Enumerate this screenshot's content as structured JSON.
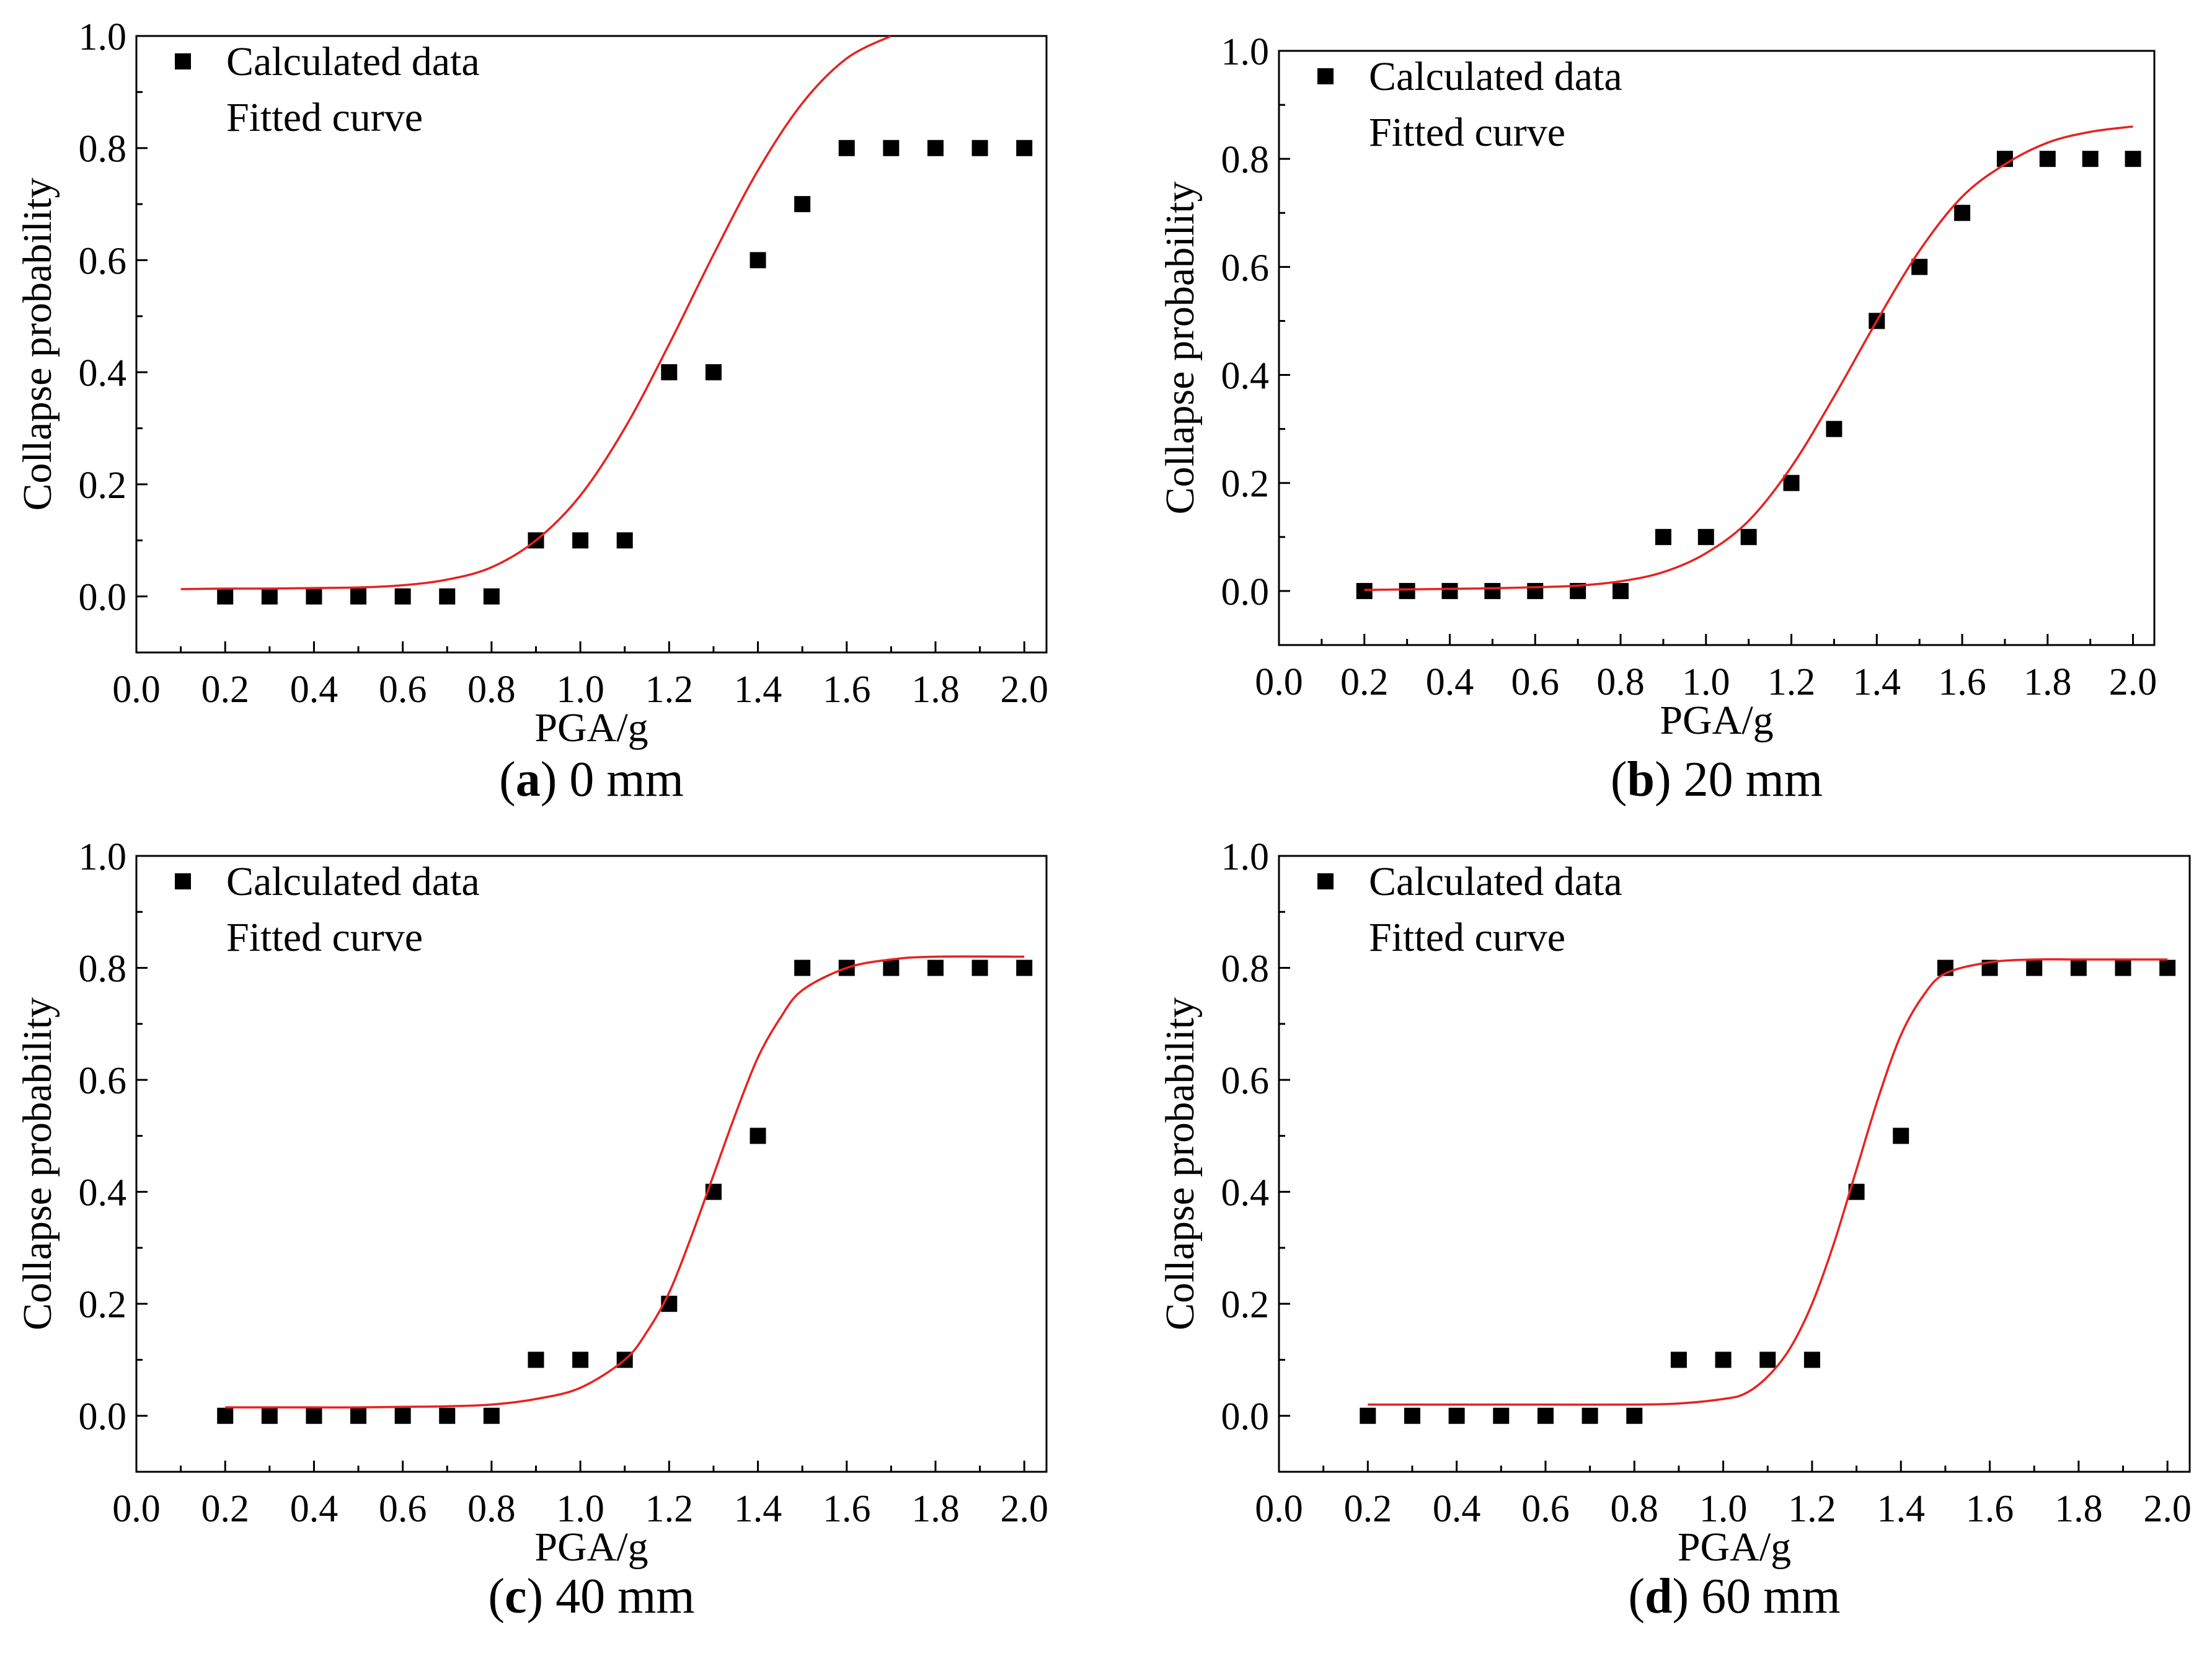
{
  "figure": {
    "x_tick_labels": [
      "0.0",
      "0.2",
      "0.4",
      "0.6",
      "0.8",
      "1.0",
      "1.2",
      "1.4",
      "1.6",
      "1.8",
      "2.0"
    ],
    "y_tick_labels": [
      "0.0",
      "0.2",
      "0.4",
      "0.6",
      "0.8",
      "1.0"
    ]
  },
  "chart_data": [
    {
      "type": "scatter",
      "panel": "a",
      "caption_letter": "a",
      "caption_text": " 0 mm",
      "xlabel": "PGA/g",
      "ylabel": "Collapse probability",
      "xlim": [
        0.0,
        2.05
      ],
      "ylim": [
        -0.1,
        1.0
      ],
      "legend": [
        "Calculated data",
        "Fitted curve"
      ],
      "legend_placement": "top-left",
      "series": [
        {
          "name": "Calculated data",
          "kind": "points",
          "color": "#000000",
          "x": [
            0.2,
            0.3,
            0.4,
            0.5,
            0.6,
            0.7,
            0.8,
            0.9,
            1.0,
            1.1,
            1.2,
            1.3,
            1.4,
            1.5,
            1.6,
            1.7,
            1.8,
            1.9,
            2.0
          ],
          "y": [
            0,
            0,
            0,
            0,
            0,
            0,
            0,
            0.1,
            0.1,
            0.1,
            0.4,
            0.4,
            0.6,
            0.7,
            0.8,
            0.8,
            0.8,
            0.8,
            0.8
          ]
        },
        {
          "name": "Fitted curve",
          "kind": "line",
          "color": "#e8211f",
          "x": [
            0.1,
            0.2,
            0.3,
            0.4,
            0.5,
            0.6,
            0.7,
            0.8,
            0.9,
            1.0,
            1.1,
            1.2,
            1.3,
            1.4,
            1.5,
            1.6,
            1.7
          ],
          "y": [
            0.013,
            0.014,
            0.014,
            0.015,
            0.016,
            0.02,
            0.03,
            0.052,
            0.1,
            0.18,
            0.3,
            0.45,
            0.61,
            0.76,
            0.88,
            0.96,
            1.0
          ]
        }
      ]
    },
    {
      "type": "scatter",
      "panel": "b",
      "caption_letter": "b",
      "caption_text": " 20 mm",
      "xlabel": "PGA/g",
      "ylabel": "Collapse probability",
      "xlim": [
        0.0,
        2.05
      ],
      "ylim": [
        -0.1,
        1.0
      ],
      "legend": [
        "Calculated data",
        "Fitted curve"
      ],
      "legend_placement": "top-left",
      "series": [
        {
          "name": "Calculated data",
          "kind": "points",
          "color": "#000000",
          "x": [
            0.2,
            0.3,
            0.4,
            0.5,
            0.6,
            0.7,
            0.8,
            0.9,
            1.0,
            1.1,
            1.2,
            1.3,
            1.4,
            1.5,
            1.6,
            1.7,
            1.8,
            1.9,
            2.0
          ],
          "y": [
            0,
            0,
            0,
            0,
            0,
            0,
            0,
            0.1,
            0.1,
            0.1,
            0.2,
            0.3,
            0.5,
            0.6,
            0.7,
            0.8,
            0.8,
            0.8,
            0.8
          ]
        },
        {
          "name": "Fitted curve",
          "kind": "line",
          "color": "#e8211f",
          "x": [
            0.2,
            0.3,
            0.4,
            0.5,
            0.6,
            0.7,
            0.8,
            0.9,
            1.0,
            1.1,
            1.2,
            1.3,
            1.4,
            1.5,
            1.6,
            1.7,
            1.8,
            1.9,
            2.0
          ],
          "y": [
            0.002,
            0.003,
            0.004,
            0.005,
            0.007,
            0.01,
            0.018,
            0.035,
            0.07,
            0.13,
            0.23,
            0.36,
            0.5,
            0.63,
            0.73,
            0.79,
            0.83,
            0.85,
            0.86
          ]
        }
      ]
    },
    {
      "type": "scatter",
      "panel": "c",
      "caption_letter": "c",
      "caption_text": " 40 mm",
      "xlabel": "PGA/g",
      "ylabel": "Collapse probability",
      "xlim": [
        0.0,
        2.05
      ],
      "ylim": [
        -0.1,
        1.0
      ],
      "legend": [
        "Calculated data",
        "Fitted curve"
      ],
      "legend_placement": "top-left",
      "series": [
        {
          "name": "Calculated data",
          "kind": "points",
          "color": "#000000",
          "x": [
            0.2,
            0.3,
            0.4,
            0.5,
            0.6,
            0.7,
            0.8,
            0.9,
            1.0,
            1.1,
            1.2,
            1.3,
            1.4,
            1.5,
            1.6,
            1.7,
            1.8,
            1.9,
            2.0
          ],
          "y": [
            0,
            0,
            0,
            0,
            0,
            0,
            0,
            0.1,
            0.1,
            0.1,
            0.2,
            0.4,
            0.5,
            0.8,
            0.8,
            0.8,
            0.8,
            0.8,
            0.8
          ]
        },
        {
          "name": "Fitted curve",
          "kind": "line",
          "color": "#e8211f",
          "x": [
            0.2,
            0.3,
            0.4,
            0.5,
            0.6,
            0.7,
            0.8,
            0.9,
            1.0,
            1.1,
            1.15,
            1.2,
            1.25,
            1.3,
            1.35,
            1.4,
            1.45,
            1.5,
            1.6,
            1.7,
            1.8,
            2.0
          ],
          "y": [
            0.015,
            0.015,
            0.015,
            0.015,
            0.016,
            0.017,
            0.02,
            0.03,
            0.05,
            0.1,
            0.15,
            0.22,
            0.32,
            0.43,
            0.54,
            0.64,
            0.71,
            0.76,
            0.8,
            0.815,
            0.82,
            0.82
          ]
        }
      ]
    },
    {
      "type": "scatter",
      "panel": "d",
      "caption_letter": "d",
      "caption_text": " 60 mm",
      "xlabel": "PGA/g",
      "ylabel": "Collapse probability",
      "xlim": [
        0.0,
        2.05
      ],
      "ylim": [
        -0.1,
        1.0
      ],
      "legend": [
        "Calculated data",
        "Fitted curve"
      ],
      "legend_placement": "top-left",
      "series": [
        {
          "name": "Calculated data",
          "kind": "points",
          "color": "#000000",
          "x": [
            0.2,
            0.3,
            0.4,
            0.5,
            0.6,
            0.7,
            0.8,
            0.9,
            1.0,
            1.1,
            1.2,
            1.3,
            1.4,
            1.5,
            1.6,
            1.7,
            1.8,
            1.9,
            2.0
          ],
          "y": [
            0,
            0,
            0,
            0,
            0,
            0,
            0,
            0.1,
            0.1,
            0.1,
            0.1,
            0.4,
            0.5,
            0.8,
            0.8,
            0.8,
            0.8,
            0.8,
            0.8
          ]
        },
        {
          "name": "Fitted curve",
          "kind": "line",
          "color": "#e8211f",
          "x": [
            0.2,
            0.4,
            0.6,
            0.8,
            0.9,
            1.0,
            1.05,
            1.1,
            1.15,
            1.2,
            1.25,
            1.3,
            1.35,
            1.4,
            1.45,
            1.5,
            1.6,
            1.7,
            1.8,
            2.0
          ],
          "y": [
            0.02,
            0.02,
            0.02,
            0.02,
            0.022,
            0.03,
            0.04,
            0.07,
            0.12,
            0.2,
            0.31,
            0.44,
            0.57,
            0.68,
            0.75,
            0.79,
            0.81,
            0.815,
            0.815,
            0.815
          ]
        }
      ]
    }
  ]
}
